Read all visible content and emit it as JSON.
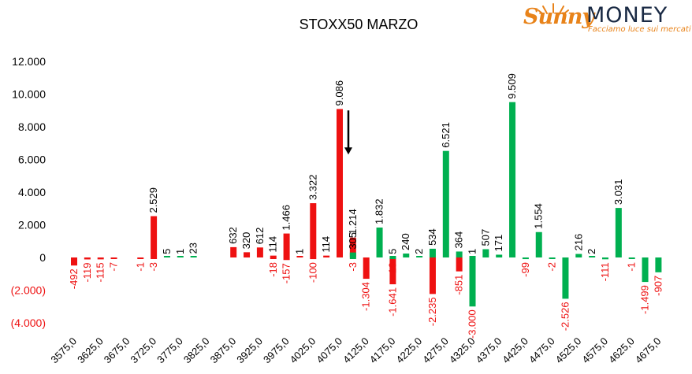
{
  "logo": {
    "brand_left": "Sunny",
    "brand_right": "MONEY",
    "tagline": "Facciamo luce sui mercati",
    "colors": {
      "orange": "#e8831a",
      "navy": "#1a2a44"
    }
  },
  "chart_data": {
    "type": "bar",
    "title": "STOXX50 MARZO",
    "xlabel": "",
    "ylabel": "",
    "ylim": [
      -4000,
      12000
    ],
    "yticks": [
      {
        "value": 12000,
        "label": "12.000"
      },
      {
        "value": 10000,
        "label": "10.000"
      },
      {
        "value": 8000,
        "label": "8.000"
      },
      {
        "value": 6000,
        "label": "6.000"
      },
      {
        "value": 4000,
        "label": "4.000"
      },
      {
        "value": 2000,
        "label": "2.000"
      },
      {
        "value": 0,
        "label": "0"
      },
      {
        "value": -2000,
        "label": "(2.000)"
      },
      {
        "value": -4000,
        "label": "(4.000)"
      }
    ],
    "grid": false,
    "legend": "none",
    "colors": {
      "red": "#ee1111",
      "green": "#00b050",
      "neg_axis_label": "#ee1111"
    },
    "categories": [
      "3575,0",
      "3600,0",
      "3625,0",
      "3650,0",
      "3675,0",
      "3700,0",
      "3725,0",
      "3750,0",
      "3775,0",
      "3800,0",
      "3825,0",
      "3850,0",
      "3875,0",
      "3900,0",
      "3925,0",
      "3950,0",
      "3975,0",
      "4000,0",
      "4025,0",
      "4050,0",
      "4075,0",
      "4100,0",
      "4125,0",
      "4150,0",
      "4175,0",
      "4200,0",
      "4225,0",
      "4250,0",
      "4275,0",
      "4300,0",
      "4325,0",
      "4350,0",
      "4375,0",
      "4400,0",
      "4425,0",
      "4450,0",
      "4475,0",
      "4500,0",
      "4525,0",
      "4550,0",
      "4575,0",
      "4600,0",
      "4625,0",
      "4650,0",
      "4675,0"
    ],
    "visible_x_labels": [
      "3575,0",
      "3625,0",
      "3675,0",
      "3725,0",
      "3775,0",
      "3825,0",
      "3875,0",
      "3925,0",
      "3975,0",
      "4025,0",
      "4075,0",
      "4125,0",
      "4175,0",
      "4225,0",
      "4275,0",
      "4325,0",
      "4375,0",
      "4425,0",
      "4475,0",
      "4525,0",
      "4575,0",
      "4625,0",
      "4675,0"
    ],
    "series": [
      {
        "color": "red",
        "values": [
          null,
          null,
          null,
          null,
          null,
          null,
          2529,
          null,
          null,
          null,
          null,
          null,
          632,
          320,
          612,
          114,
          1466,
          1,
          3322,
          114,
          9086,
          1214,
          null,
          null,
          null,
          null,
          null,
          null,
          null,
          null,
          null,
          null,
          null,
          null,
          null,
          null,
          null,
          null,
          null,
          null,
          null,
          null,
          null,
          null,
          null
        ],
        "labels": [
          null,
          null,
          null,
          null,
          null,
          null,
          "2.529",
          null,
          null,
          null,
          null,
          null,
          "632",
          "320",
          "612",
          "114",
          "1.466",
          "1",
          "3.322",
          "114",
          "9.086",
          "1.214",
          null,
          null,
          null,
          null,
          null,
          null,
          null,
          null,
          null,
          null,
          null,
          null,
          null,
          null,
          null,
          null,
          null,
          null,
          null,
          null,
          null,
          null,
          null
        ],
        "label_color": "#000000"
      },
      {
        "color": "red",
        "values": [
          -492,
          -119,
          -115,
          -7,
          null,
          -1,
          -3,
          null,
          null,
          null,
          null,
          null,
          null,
          null,
          null,
          -18,
          -157,
          null,
          -100,
          null,
          null,
          null,
          -1304,
          null,
          -1641,
          null,
          null,
          -2235,
          null,
          -851,
          null,
          null,
          null,
          null,
          null,
          null,
          null,
          null,
          null,
          null,
          null,
          null,
          null,
          null,
          null
        ],
        "labels": [
          "-492",
          "-119",
          "-115",
          "-7",
          null,
          "-1",
          "-3",
          null,
          null,
          null,
          null,
          null,
          null,
          null,
          null,
          "-18",
          "-157",
          null,
          "-100",
          null,
          null,
          null,
          "-1.304",
          null,
          "-1.641",
          null,
          null,
          "-2.235",
          null,
          "-851",
          null,
          null,
          null,
          null,
          null,
          null,
          null,
          null,
          null,
          null,
          null,
          null,
          null,
          null,
          null
        ],
        "label_color": "#ee1111"
      },
      {
        "color": "green",
        "values": [
          null,
          null,
          null,
          null,
          null,
          null,
          null,
          5,
          1,
          23,
          null,
          null,
          null,
          null,
          null,
          null,
          null,
          null,
          null,
          null,
          null,
          305,
          null,
          1832,
          5,
          240,
          2,
          534,
          6521,
          364,
          1,
          507,
          171,
          9509,
          null,
          1554,
          null,
          null,
          216,
          2,
          null,
          3031,
          null,
          null,
          null
        ],
        "labels": [
          null,
          null,
          null,
          null,
          null,
          null,
          null,
          "5",
          "1",
          "23",
          null,
          null,
          null,
          null,
          null,
          null,
          null,
          null,
          null,
          null,
          null,
          "305",
          null,
          "1.832",
          "5",
          "240",
          "2",
          "534",
          "6.521",
          "364",
          "1",
          "507",
          "171",
          "9.509",
          null,
          "1.554",
          null,
          null,
          "216",
          "2",
          null,
          "3.031",
          null,
          null,
          null
        ],
        "label_color": "#000000"
      },
      {
        "color": "green",
        "values": [
          null,
          null,
          null,
          null,
          null,
          null,
          null,
          null,
          null,
          null,
          null,
          null,
          null,
          null,
          null,
          null,
          null,
          null,
          null,
          null,
          null,
          -3,
          null,
          null,
          -19,
          null,
          null,
          null,
          null,
          null,
          -3000,
          null,
          null,
          null,
          -99,
          null,
          -2,
          -2526,
          null,
          null,
          -111,
          null,
          -1,
          -1499,
          -907
        ],
        "labels": [
          null,
          null,
          null,
          null,
          null,
          null,
          null,
          null,
          null,
          null,
          null,
          null,
          null,
          null,
          null,
          null,
          null,
          null,
          null,
          null,
          null,
          "-3",
          null,
          null,
          "-19",
          null,
          null,
          null,
          null,
          null,
          "-3.000",
          null,
          null,
          null,
          "-99",
          null,
          "-2",
          "-2.526",
          null,
          null,
          "-111",
          null,
          "-1",
          "-1.499",
          "-907"
        ],
        "label_color": "#ee1111"
      }
    ],
    "annotations": [
      {
        "type": "arrow",
        "direction": "down",
        "category": "4075,0",
        "from": 9000,
        "to": 6300
      }
    ]
  }
}
